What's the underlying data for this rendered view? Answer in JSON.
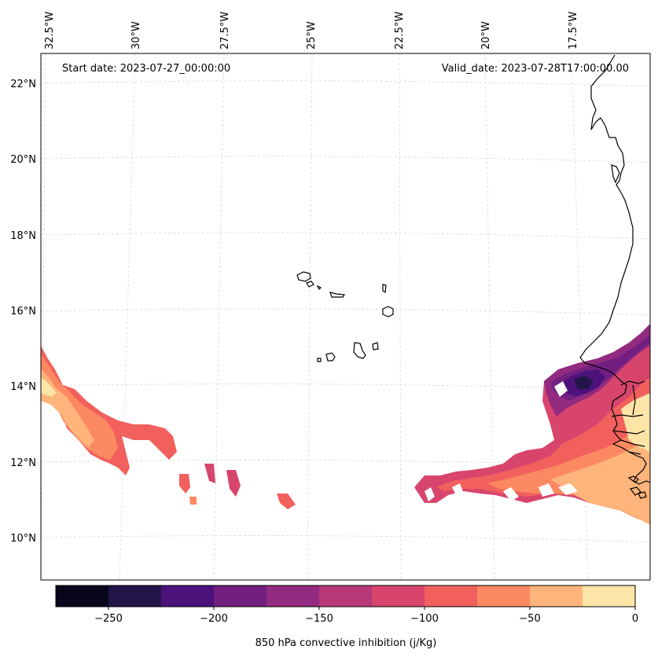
{
  "header": {
    "start_date": "Start date: 2023-07-27_00:00:00",
    "valid_date": "Valid_date: 2023-07-28T17:00:00.00"
  },
  "lon_labels": [
    "32.5°W",
    "30°W",
    "27.5°W",
    "25°W",
    "22.5°W",
    "20°W",
    "17.5°W"
  ],
  "lat_labels": [
    "22°N",
    "20°N",
    "18°N",
    "16°N",
    "14°N",
    "12°N",
    "10°N"
  ],
  "colorbar": {
    "label": "850 hPa convective inhibition (j/Kg)",
    "ticks": [
      "−250",
      "−200",
      "−150",
      "−100",
      "−50",
      "0"
    ],
    "levels": [
      -275,
      -250,
      -225,
      -200,
      -175,
      -150,
      -125,
      -100,
      -75,
      -50,
      -25,
      0
    ],
    "colors": [
      "#07061b",
      "#231548",
      "#4d117b",
      "#721f81",
      "#922b80",
      "#b73779",
      "#d8456c",
      "#f1605d",
      "#fc8961",
      "#feb47b",
      "#fde5a8"
    ]
  },
  "map": {
    "grid": true,
    "coastline_color": "#000000",
    "gridline_color": "#cccccc"
  }
}
